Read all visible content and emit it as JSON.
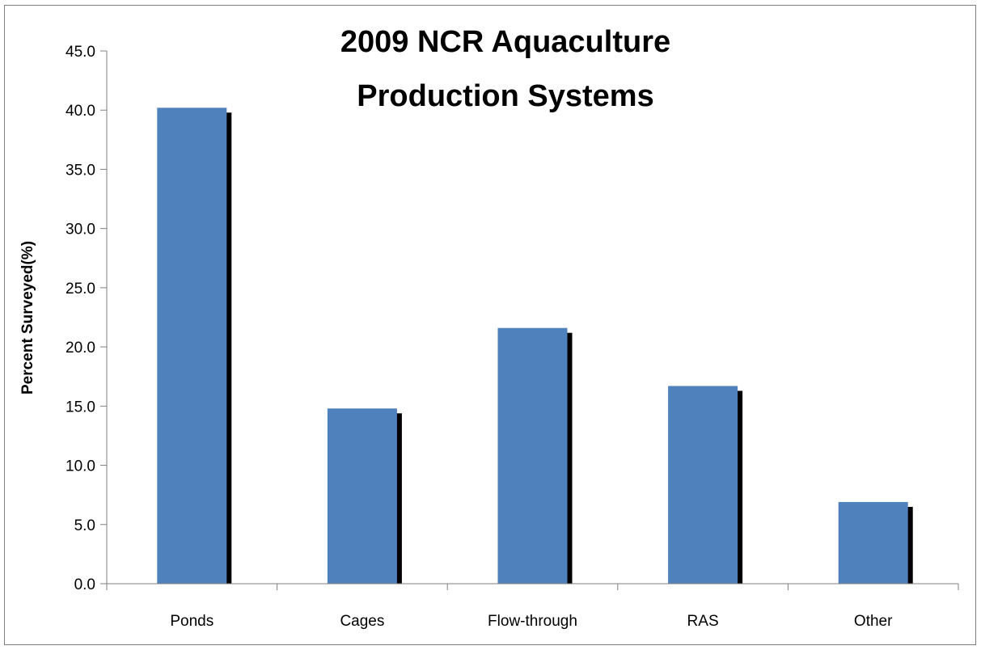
{
  "chart_data": {
    "type": "bar",
    "title_lines": [
      "2009 NCR Aquaculture",
      "Production Systems"
    ],
    "xlabel": "",
    "ylabel": "Percent Surveyed(%)",
    "categories": [
      "Ponds",
      "Cages",
      "Flow-through",
      "RAS",
      "Other"
    ],
    "series": [
      {
        "values": [
          40.2,
          14.8,
          21.6,
          16.7,
          6.9
        ],
        "color": "#4F81BD",
        "shadow_color": "#000000"
      }
    ],
    "ylim": [
      0,
      45
    ],
    "ytick_step": 5,
    "ytick_labels": [
      "0.0",
      "5.0",
      "10.0",
      "15.0",
      "20.0",
      "25.0",
      "30.0",
      "35.0",
      "40.0",
      "45.0"
    ],
    "grid": false,
    "legend": "none"
  }
}
